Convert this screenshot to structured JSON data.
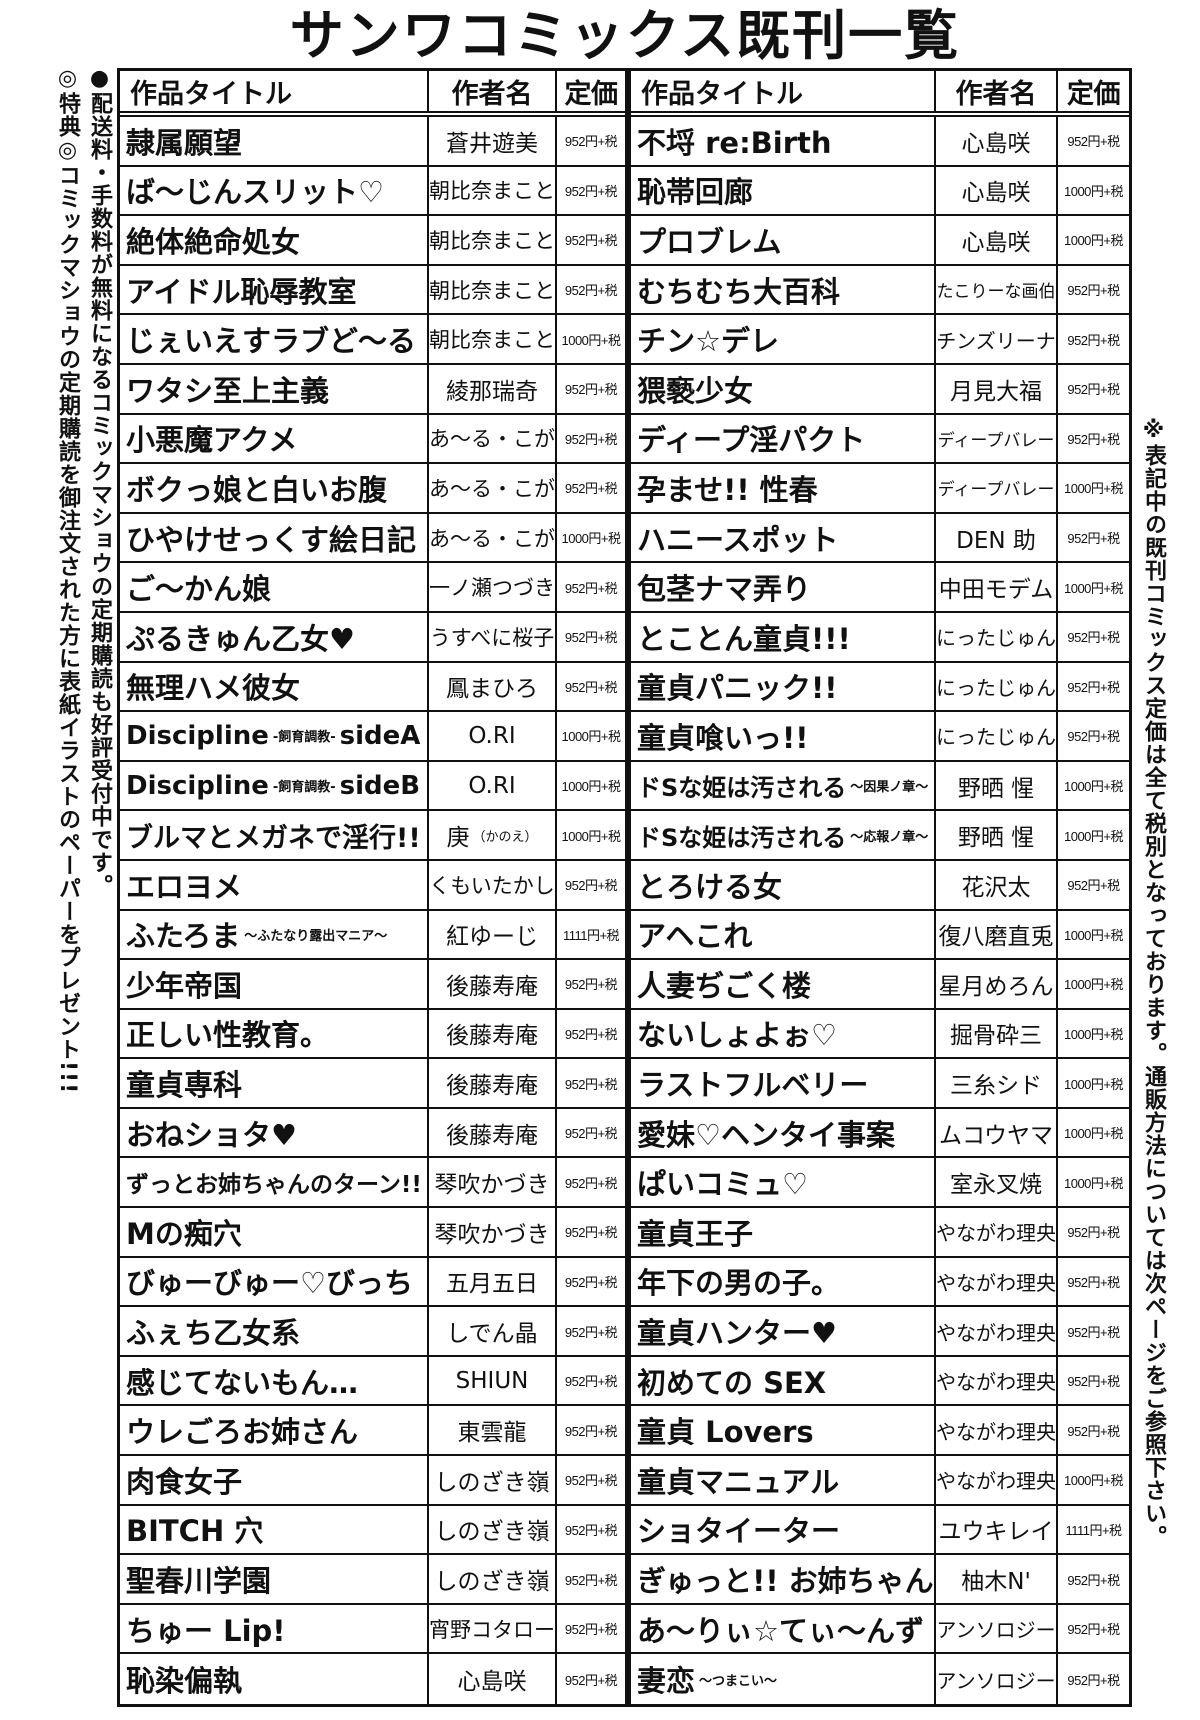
{
  "title": "サンワコミックス既刊一覧",
  "notes": {
    "shipping": "●配送料・手数料が無料になるコミックマショウの定期購読も好評受付中です。",
    "bonus": "◎特典◎コミックマショウの定期購読を御注文された方に表紙イラストのペーパーをプレゼント!!!",
    "price": "※表記中の既刊コミックス定価は全て税別となっております。通販方法については次ページをご参照下さい。"
  },
  "headers": {
    "title": "作品タイトル",
    "author": "作者名",
    "price": "定価"
  },
  "left_rows": [
    {
      "title": "隷属願望",
      "author": "蒼井遊美",
      "price": "952円+税"
    },
    {
      "title": "ば～じんスリット♡",
      "author": "朝比奈まこと",
      "price": "952円+税"
    },
    {
      "title": "絶体絶命処女",
      "author": "朝比奈まこと",
      "price": "952円+税"
    },
    {
      "title": "アイドル恥辱教室",
      "author": "朝比奈まこと",
      "price": "952円+税"
    },
    {
      "title": "じぇいえすラブど～る",
      "author": "朝比奈まこと",
      "price": "1000円+税"
    },
    {
      "title": "ワタシ至上主義",
      "author": "綾那瑞奇",
      "price": "952円+税"
    },
    {
      "title": "小悪魔アクメ",
      "author": "あ～る・こが",
      "price": "952円+税"
    },
    {
      "title": "ボクっ娘と白いお腹",
      "author": "あ～る・こが",
      "price": "952円+税"
    },
    {
      "title": "ひやけせっくす絵日記",
      "author": "あ～る・こが",
      "price": "1000円+税"
    },
    {
      "title": "ご～かん娘",
      "author": "一ノ瀬つづき",
      "price": "952円+税"
    },
    {
      "title": "ぷるきゅん乙女♥",
      "author": "うすべに桜子",
      "price": "952円+税"
    },
    {
      "title": "無理ハメ彼女",
      "author": "鳳まひろ",
      "price": "952円+税"
    },
    {
      "title": "Discipline",
      "sub": "-飼育調教-",
      "title_end": "sideA",
      "author": "O.RI",
      "price": "1000円+税"
    },
    {
      "title": "Discipline",
      "sub": "-飼育調教-",
      "title_end": "sideB",
      "author": "O.RI",
      "price": "1000円+税"
    },
    {
      "title": "ブルマとメガネで淫行!!",
      "author": "庚",
      "author_sub": "（かのえ）",
      "price": "1000円+税"
    },
    {
      "title": "エロヨメ",
      "author": "くもいたかし",
      "price": "952円+税"
    },
    {
      "title": "ふたろま",
      "sub": "～ふたなり露出マニア～",
      "author": "紅ゆーじ",
      "price": "1111円+税"
    },
    {
      "title": "少年帝国",
      "author": "後藤寿庵",
      "price": "952円+税"
    },
    {
      "title": "正しい性教育。",
      "author": "後藤寿庵",
      "price": "952円+税"
    },
    {
      "title": "童貞専科",
      "author": "後藤寿庵",
      "price": "952円+税"
    },
    {
      "title": "おねショタ♥",
      "author": "後藤寿庵",
      "price": "952円+税"
    },
    {
      "title": "ずっとお姉ちゃんのターン!!",
      "author": "琴吹かづき",
      "price": "952円+税"
    },
    {
      "title": "Mの痴穴",
      "author": "琴吹かづき",
      "price": "952円+税"
    },
    {
      "title": "びゅーびゅー♡びっち",
      "author": "五月五日",
      "price": "952円+税"
    },
    {
      "title": "ふぇち乙女系",
      "author": "しでん晶",
      "price": "952円+税"
    },
    {
      "title": "感じてないもん…",
      "author": "SHIUN",
      "price": "952円+税"
    },
    {
      "title": "ウレごろお姉さん",
      "author": "東雲龍",
      "price": "952円+税"
    },
    {
      "title": "肉食女子",
      "author": "しのざき嶺",
      "price": "952円+税"
    },
    {
      "title": "BITCH 穴",
      "author": "しのざき嶺",
      "price": "952円+税"
    },
    {
      "title": "聖春川学園",
      "author": "しのざき嶺",
      "price": "952円+税"
    },
    {
      "title": "ちゅー Lip!",
      "author": "宵野コタロー",
      "price": "952円+税"
    },
    {
      "title": "恥染偏執",
      "author": "心島咲",
      "price": "952円+税"
    }
  ],
  "right_rows": [
    {
      "title": "不埒 re:Birth",
      "author": "心島咲",
      "price": "952円+税"
    },
    {
      "title": "恥帯回廊",
      "author": "心島咲",
      "price": "1000円+税"
    },
    {
      "title": "プロブレム",
      "author": "心島咲",
      "price": "1000円+税"
    },
    {
      "title": "むちむち大百科",
      "author": "たこりーな画伯",
      "price": "952円+税"
    },
    {
      "title": "チン☆デレ",
      "author": "チンズリーナ",
      "price": "952円+税"
    },
    {
      "title": "猥褻少女",
      "author": "月見大福",
      "price": "952円+税"
    },
    {
      "title": "ディープ淫パクト",
      "author": "ディープバレー",
      "price": "952円+税"
    },
    {
      "title": "孕ませ!! 性春",
      "author": "ディープバレー",
      "price": "1000円+税"
    },
    {
      "title": "ハニースポット",
      "author": "DEN 助",
      "price": "952円+税"
    },
    {
      "title": "包茎ナマ弄り",
      "author": "中田モデム",
      "price": "1000円+税"
    },
    {
      "title": "とことん童貞!!!",
      "author": "にったじゅん",
      "price": "952円+税"
    },
    {
      "title": "童貞パニック!!",
      "author": "にったじゅん",
      "price": "952円+税"
    },
    {
      "title": "童貞喰いっ!!",
      "author": "にったじゅん",
      "price": "952円+税"
    },
    {
      "title": "ドSな姫は汚される",
      "sub": "～因果ノ章～",
      "author": "野晒 惺",
      "price": "1000円+税"
    },
    {
      "title": "ドSな姫は汚される",
      "sub": "～応報ノ章～",
      "author": "野晒 惺",
      "price": "1000円+税"
    },
    {
      "title": "とろける女",
      "author": "花沢太",
      "price": "952円+税"
    },
    {
      "title": "アヘこれ",
      "author": "復八磨直兎",
      "price": "1000円+税"
    },
    {
      "title": "人妻ぢごく楼",
      "author": "星月めろん",
      "price": "1000円+税"
    },
    {
      "title": "ないしょよぉ♡",
      "author": "掘骨砕三",
      "price": "1000円+税"
    },
    {
      "title": "ラストフルベリー",
      "author": "三糸シド",
      "price": "1000円+税"
    },
    {
      "title": "愛妹♡ヘンタイ事案",
      "author": "ムコウヤマ",
      "price": "1000円+税"
    },
    {
      "title": "ぱいコミュ♡",
      "author": "室永叉焼",
      "price": "1000円+税"
    },
    {
      "title": "童貞王子",
      "author": "やながわ理央",
      "price": "952円+税"
    },
    {
      "title": "年下の男の子。",
      "author": "やながわ理央",
      "price": "952円+税"
    },
    {
      "title": "童貞ハンター♥",
      "author": "やながわ理央",
      "price": "952円+税"
    },
    {
      "title": "初めての SEX",
      "author": "やながわ理央",
      "price": "952円+税"
    },
    {
      "title": "童貞 Lovers",
      "author": "やながわ理央",
      "price": "952円+税"
    },
    {
      "title": "童貞マニュアル",
      "author": "やながわ理央",
      "price": "1000円+税"
    },
    {
      "title": "ショタイーター",
      "author": "ユウキレイ",
      "price": "1111円+税"
    },
    {
      "title": "ぎゅっと!! お姉ちゃん",
      "author": "柚木N'",
      "price": "952円+税"
    },
    {
      "title": "あ～りぃ☆てぃ～んず",
      "author": "アンソロジー",
      "price": "952円+税"
    },
    {
      "title": "妻恋",
      "sub": "～つまこい～",
      "author": "アンソロジー",
      "price": "952円+税"
    }
  ]
}
